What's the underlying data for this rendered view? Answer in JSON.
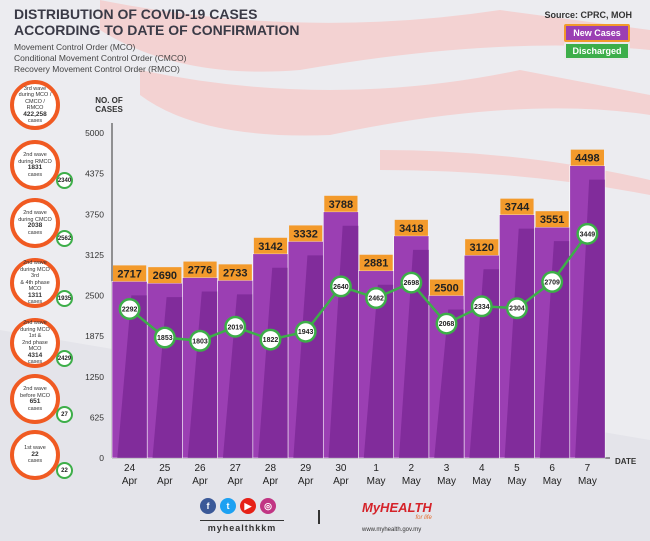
{
  "header": {
    "title_line1": "DISTRIBUTION OF COVID-19 CASES",
    "title_line2": "ACCORDING TO DATE OF CONFIRMATION",
    "sub1": "Movement Control Order (MCO)",
    "sub2": "Conditional Movement Control Order (CMCO)",
    "sub3": "Recovery Movement Control Order (RMCO)",
    "source": "Source: CPRC, MOH"
  },
  "legend": {
    "new": "New Cases",
    "discharged": "Discharged"
  },
  "waves": [
    {
      "l1": "3rd wave",
      "l2": "during MCO /",
      "l3": "CMCO / RMCO",
      "cases": "422,258",
      "unit": "cases",
      "badge": ""
    },
    {
      "l1": "2nd wave",
      "l2": "during RMCO",
      "l3": "",
      "cases": "1831",
      "unit": "cases",
      "badge": "2340"
    },
    {
      "l1": "2nd wave",
      "l2": "during CMCO",
      "l3": "",
      "cases": "2038",
      "unit": "cases",
      "badge": "2562"
    },
    {
      "l1": "2nd wave",
      "l2": "during MCO 3rd",
      "l3": "& 4th phase MCO",
      "cases": "1311",
      "unit": "cases",
      "badge": "1935"
    },
    {
      "l1": "2nd wave",
      "l2": "during MCO 1st &",
      "l3": "2nd phase MCO",
      "cases": "4314",
      "unit": "cases",
      "badge": "2429"
    },
    {
      "l1": "2nd wave",
      "l2": "before MCO",
      "l3": "",
      "cases": "651",
      "unit": "cases",
      "badge": "27"
    },
    {
      "l1": "1st wave",
      "l2": "",
      "l3": "",
      "cases": "22",
      "unit": "cases",
      "badge": "22"
    }
  ],
  "chart_data": {
    "type": "bar",
    "title": "Distribution of COVID-19 cases according to date of confirmation",
    "ylabel": "NO. OF CASES",
    "xlabel": "DATE",
    "ylim": [
      0,
      5000
    ],
    "yticks": [
      0,
      625,
      1250,
      1875,
      2500,
      3125,
      3750,
      4375,
      5000
    ],
    "categories": [
      [
        "24",
        "Apr"
      ],
      [
        "25",
        "Apr"
      ],
      [
        "26",
        "Apr"
      ],
      [
        "27",
        "Apr"
      ],
      [
        "28",
        "Apr"
      ],
      [
        "29",
        "Apr"
      ],
      [
        "30",
        "Apr"
      ],
      [
        "1",
        "May"
      ],
      [
        "2",
        "May"
      ],
      [
        "3",
        "May"
      ],
      [
        "4",
        "May"
      ],
      [
        "5",
        "May"
      ],
      [
        "6",
        "May"
      ],
      [
        "7",
        "May"
      ]
    ],
    "series": [
      {
        "name": "New Cases",
        "type": "bar",
        "values": [
          2717,
          2690,
          2776,
          2733,
          3142,
          3332,
          3788,
          2881,
          3418,
          2500,
          3120,
          3744,
          3551,
          4498
        ]
      },
      {
        "name": "Discharged",
        "type": "line",
        "values": [
          2292,
          1853,
          1803,
          2019,
          1822,
          1943,
          2640,
          2462,
          2698,
          2068,
          2334,
          2304,
          2709,
          3449
        ]
      }
    ],
    "colors": {
      "bar": "#9b3fb3",
      "bar_dark": "#6b1d86",
      "cap": "#f39a2b",
      "line": "#3dae49"
    }
  },
  "footer": {
    "handle": "myhealthkkm",
    "brand": "MyHEALTH",
    "tagline": "for life",
    "url": "www.myhealth.gov.my"
  }
}
